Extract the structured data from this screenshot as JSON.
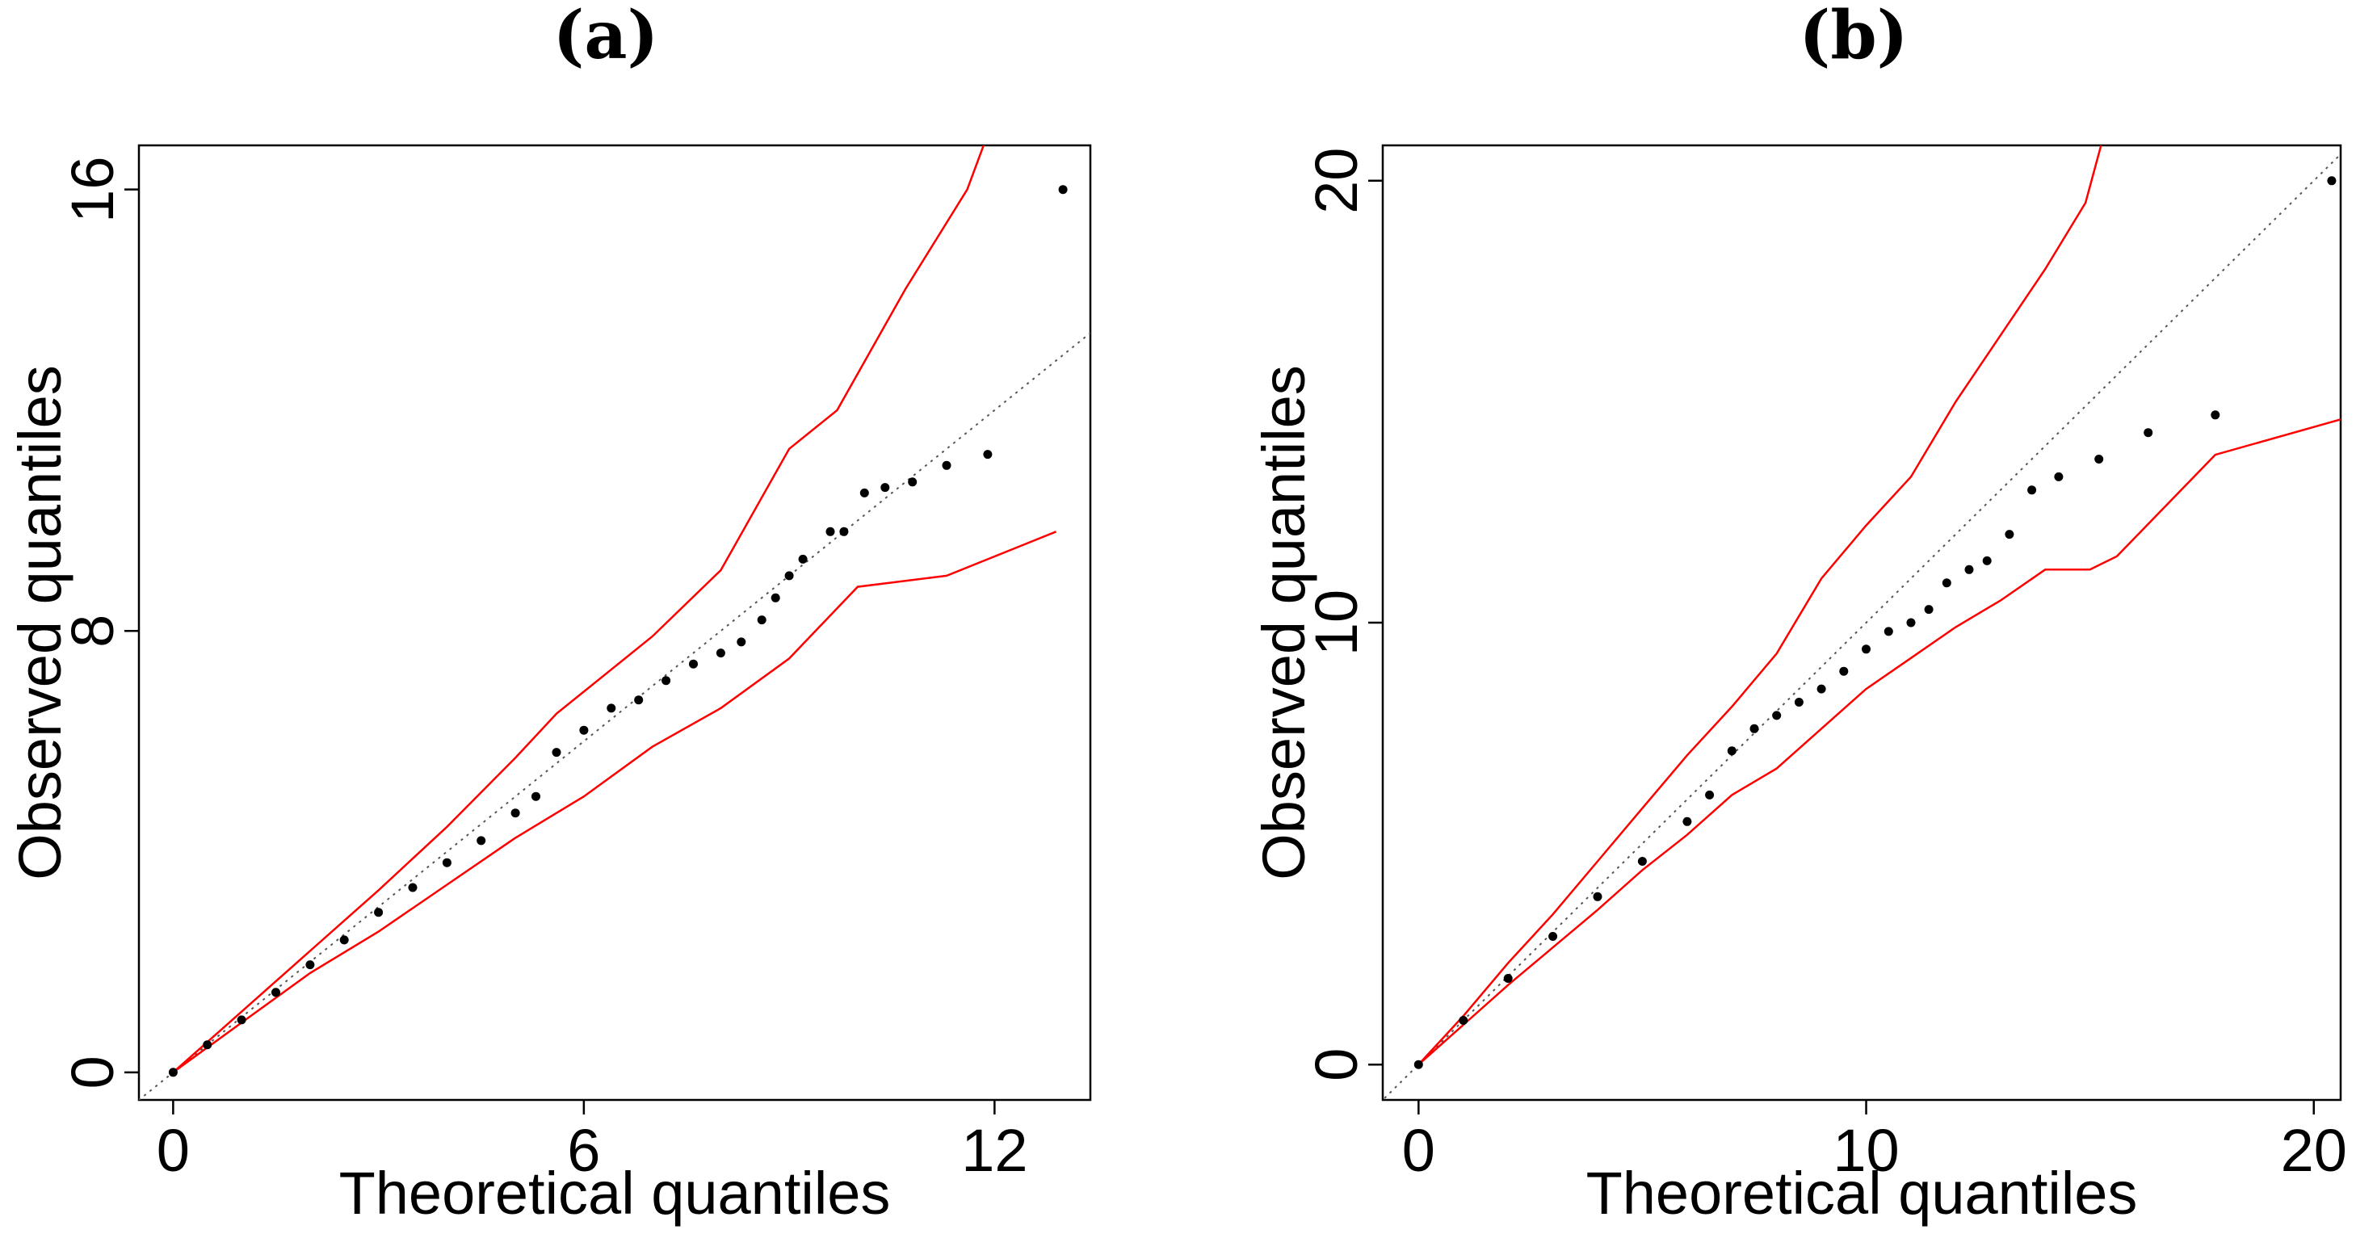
{
  "chart_data": [
    {
      "type": "scatter",
      "panel": "a",
      "title": "(a)",
      "xlabel": "Theoretical quantiles",
      "ylabel": "Observed quantiles",
      "xlim": [
        -0.5,
        13.4
      ],
      "ylim": [
        -0.5,
        16.8
      ],
      "xticks": [
        0,
        6,
        12
      ],
      "yticks": [
        0,
        8,
        16
      ],
      "reference_line": {
        "slope": 1,
        "intercept": 0
      },
      "band_upper": {
        "x": [
          0,
          1,
          2,
          3,
          4,
          5,
          5.6,
          6,
          7,
          8,
          9,
          9.7,
          10.7,
          11.6,
          11.9
        ],
        "y": [
          0,
          1.1,
          2.2,
          3.3,
          4.45,
          5.7,
          6.5,
          6.9,
          7.9,
          9.1,
          11.3,
          12.0,
          14.2,
          16.0,
          17.0
        ]
      },
      "band_lower": {
        "x": [
          0,
          1,
          2,
          3,
          4,
          5,
          6,
          7,
          8,
          9,
          10,
          11.3,
          12.9
        ],
        "y": [
          0,
          0.9,
          1.8,
          2.55,
          3.4,
          4.25,
          5.0,
          5.9,
          6.6,
          7.5,
          8.8,
          9.0,
          9.8
        ]
      },
      "points": {
        "x": [
          0,
          0.5,
          1,
          1.5,
          2,
          2.5,
          3,
          3.5,
          4,
          4.5,
          5,
          5.3,
          5.6,
          6,
          6.4,
          6.8,
          7.2,
          7.6,
          8,
          8.3,
          8.6,
          8.8,
          9.0,
          9.2,
          9.6,
          9.8,
          10.1,
          10.4,
          10.8,
          11.3,
          11.9,
          13.0
        ],
        "y": [
          0,
          0.5,
          0.95,
          1.45,
          1.95,
          2.4,
          2.9,
          3.35,
          3.8,
          4.2,
          4.7,
          5.0,
          5.8,
          6.2,
          6.6,
          6.75,
          7.1,
          7.4,
          7.6,
          7.8,
          8.2,
          8.6,
          9.0,
          9.3,
          9.8,
          9.8,
          10.5,
          10.6,
          10.7,
          11.0,
          11.2,
          16.0
        ]
      }
    },
    {
      "type": "scatter",
      "panel": "b",
      "title": "(b)",
      "xlabel": "Theoretical quantiles",
      "ylabel": "Observed quantiles",
      "xlim": [
        -0.8,
        20.6
      ],
      "ylim": [
        -0.8,
        20.8
      ],
      "xticks": [
        0,
        10,
        20
      ],
      "yticks": [
        0,
        10,
        20
      ],
      "reference_line": {
        "slope": 1,
        "intercept": 0
      },
      "band_upper": {
        "x": [
          0,
          1,
          2,
          3,
          4,
          5,
          6,
          7,
          8,
          9,
          10,
          11,
          12,
          13,
          14,
          14.9,
          15.3
        ],
        "y": [
          0,
          1.1,
          2.3,
          3.4,
          4.6,
          5.8,
          7.0,
          8.1,
          9.3,
          11.0,
          12.2,
          13.3,
          15.0,
          16.5,
          18.0,
          19.5,
          21.0
        ]
      },
      "band_lower": {
        "x": [
          0,
          1,
          2,
          3,
          4,
          5,
          6,
          7,
          8,
          9,
          10,
          11,
          12,
          13,
          14,
          15,
          15.6,
          17.8,
          20.6
        ],
        "y": [
          0,
          0.9,
          1.8,
          2.65,
          3.5,
          4.4,
          5.2,
          6.1,
          6.7,
          7.6,
          8.5,
          9.2,
          9.9,
          10.5,
          11.2,
          11.2,
          11.5,
          13.8,
          14.6
        ]
      },
      "points": {
        "x": [
          0,
          1,
          2,
          3,
          4,
          5,
          6,
          6.5,
          7,
          7.5,
          8,
          8.5,
          9,
          9.5,
          10,
          10.5,
          11,
          11.4,
          11.8,
          12.3,
          12.7,
          13.2,
          13.7,
          14.3,
          15.2,
          16.3,
          17.8,
          20.4
        ],
        "y": [
          0,
          1.0,
          1.95,
          2.9,
          3.8,
          4.6,
          5.5,
          6.1,
          7.1,
          7.6,
          7.9,
          8.2,
          8.5,
          8.9,
          9.4,
          9.8,
          10.0,
          10.3,
          10.9,
          11.2,
          11.4,
          12.0,
          13.0,
          13.3,
          13.7,
          14.3,
          14.7,
          20.0
        ]
      }
    }
  ]
}
